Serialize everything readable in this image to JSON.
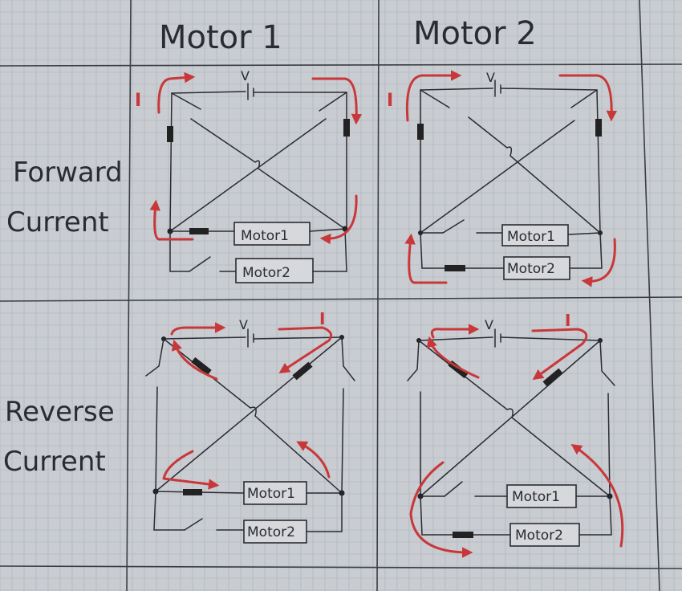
{
  "columns": {
    "motor1": "Motor 1",
    "motor2": "Motor 2"
  },
  "rows": {
    "forward": [
      "Forward",
      "Current"
    ],
    "reverse": [
      "Reverse",
      "Current"
    ]
  },
  "symbols": {
    "voltage": "V",
    "current": "I"
  },
  "motor_labels": {
    "motor1": "Motor1",
    "motor2": "Motor2"
  },
  "colors": {
    "paper": "#c9ccd0",
    "ink": "#2a2c33",
    "arrow": "#c8383a"
  }
}
